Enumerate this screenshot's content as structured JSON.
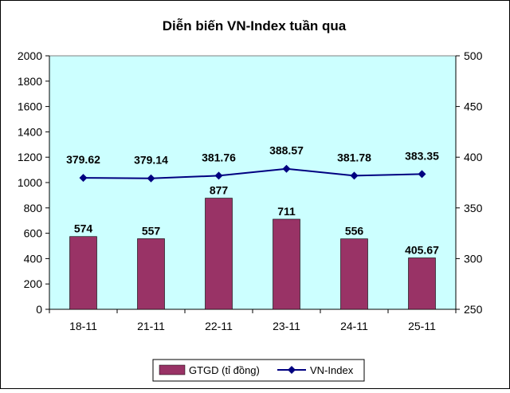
{
  "chart_data": {
    "type": "bar",
    "title": "Diễn biến VN-Index tuần qua",
    "categories": [
      "18-11",
      "21-11",
      "22-11",
      "23-11",
      "24-11",
      "25-11"
    ],
    "series": [
      {
        "name": "GTGD (tỉ đồng)",
        "type": "bar",
        "axis": "left",
        "color": "#993366",
        "values": [
          574,
          557,
          877,
          711,
          556,
          405.67
        ],
        "labels": [
          "574",
          "557",
          "877",
          "711",
          "556",
          "405.67"
        ]
      },
      {
        "name": "VN-Index",
        "type": "line",
        "axis": "right",
        "color": "#000080",
        "marker": "diamond",
        "values": [
          379.62,
          379.14,
          381.76,
          388.57,
          381.78,
          383.35
        ],
        "labels": [
          "379.62",
          "379.14",
          "381.76",
          "388.57",
          "381.78",
          "383.35"
        ]
      }
    ],
    "y_left": {
      "min": 0,
      "max": 2000,
      "ticks": [
        "0",
        "200",
        "400",
        "600",
        "800",
        "1000",
        "1200",
        "1400",
        "1600",
        "1800",
        "2000"
      ]
    },
    "y_right": {
      "min": 250,
      "max": 500,
      "ticks": [
        "250",
        "300",
        "350",
        "400",
        "450",
        "500"
      ]
    },
    "plot_background": "#CCFFFF",
    "gridlines": false,
    "legend_position": "bottom"
  }
}
